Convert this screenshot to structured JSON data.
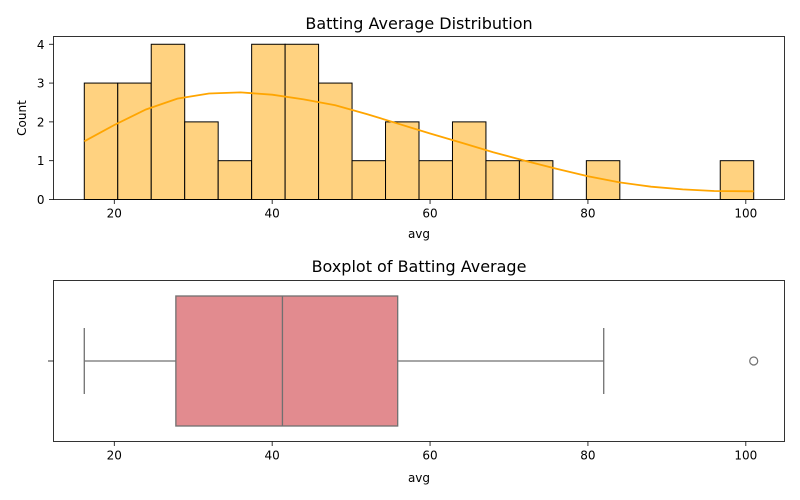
{
  "chart_data": [
    {
      "type": "histogram",
      "title": "Batting Average Distribution",
      "xlabel": "avg",
      "ylabel": "Count",
      "xlim": [
        12.3,
        104.9
      ],
      "ylim": [
        0,
        4.2
      ],
      "xticks": [
        20,
        40,
        60,
        80,
        100
      ],
      "yticks": [
        0,
        1,
        2,
        3,
        4
      ],
      "bin_edges": [
        16.2,
        20.44,
        24.68,
        28.92,
        33.16,
        37.4,
        41.64,
        45.88,
        50.12,
        54.36,
        58.6,
        62.84,
        67.08,
        71.32,
        75.56,
        79.8,
        84.04,
        88.28,
        92.52,
        96.76,
        101.0
      ],
      "counts": [
        3,
        3,
        4,
        2,
        1,
        4,
        4,
        3,
        1,
        2,
        1,
        2,
        1,
        1,
        0,
        1,
        0,
        0,
        0,
        1
      ],
      "bar_color": "#ffd280",
      "edge_color": "#000000",
      "kde": {
        "color": "#ffa500",
        "x": [
          16.2,
          20,
          24,
          28,
          32,
          36,
          40,
          44,
          48,
          52,
          56,
          60,
          64,
          68,
          72,
          76,
          80,
          84,
          88,
          92,
          96,
          101
        ],
        "y": [
          1.5,
          1.92,
          2.32,
          2.6,
          2.73,
          2.76,
          2.7,
          2.58,
          2.43,
          2.2,
          1.95,
          1.7,
          1.46,
          1.22,
          1.0,
          0.79,
          0.6,
          0.44,
          0.33,
          0.26,
          0.22,
          0.21
        ]
      },
      "grid": false
    },
    {
      "type": "boxplot",
      "title": "Boxplot of Batting Average",
      "xlabel": "avg",
      "xlim": [
        12.3,
        104.9
      ],
      "xticks": [
        20,
        40,
        60,
        80,
        100
      ],
      "whisker_low": 16.2,
      "q1": 27.8,
      "median": 41.3,
      "q3": 55.9,
      "whisker_high": 82.0,
      "outliers": [
        101.0
      ],
      "box_color": "#e28b8f",
      "line_color": "#707070"
    }
  ]
}
